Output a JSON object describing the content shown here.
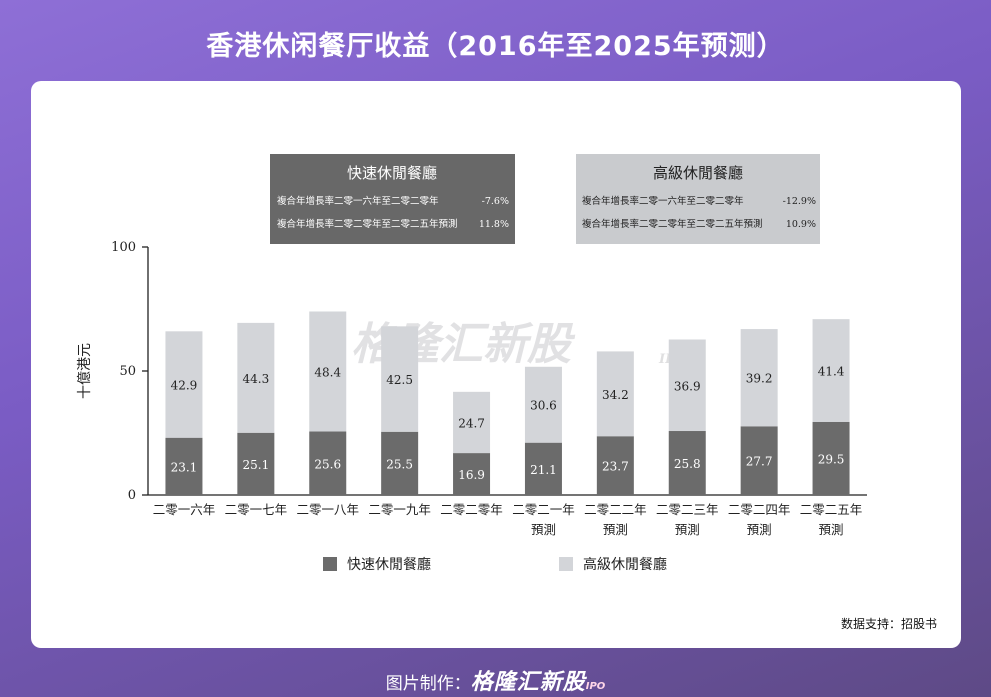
{
  "page": {
    "title": "香港休闲餐厅收益（2016年至2025年预测）",
    "source": "数据支持：招股书",
    "footer_label": "图片制作：",
    "footer_brand": "格隆汇新股",
    "footer_brand_suffix": "IPO",
    "watermark": "格隆汇新股",
    "watermark_suffix": "IPO"
  },
  "colors": {
    "fast_casual": "#6b6b6b",
    "fine_casual": "#d3d5d9",
    "legend_box_left": "#686868",
    "legend_box_right": "#c9cbce"
  },
  "chart_data": {
    "type": "bar",
    "stacked": true,
    "ylabel": "十億港元",
    "ylim": [
      0,
      100
    ],
    "yticks": [
      0,
      50,
      100
    ],
    "categories": [
      [
        "二零一六年"
      ],
      [
        "二零一七年"
      ],
      [
        "二零一八年"
      ],
      [
        "二零一九年"
      ],
      [
        "二零二零年"
      ],
      [
        "二零二一年",
        "預測"
      ],
      [
        "二零二二年",
        "預測"
      ],
      [
        "二零二三年",
        "預測"
      ],
      [
        "二零二四年",
        "預測"
      ],
      [
        "二零二五年",
        "預測"
      ]
    ],
    "series": [
      {
        "name": "快速休閒餐廳",
        "values": [
          23.1,
          25.1,
          25.6,
          25.5,
          16.9,
          21.1,
          23.7,
          25.8,
          27.7,
          29.5
        ]
      },
      {
        "name": "高級休閒餐廳",
        "values": [
          42.9,
          44.3,
          48.4,
          42.5,
          24.7,
          30.6,
          34.2,
          36.9,
          39.2,
          41.4
        ]
      }
    ],
    "cagr_boxes": [
      {
        "title": "快速休閒餐廳",
        "rows": [
          {
            "label": "複合年增長率二零一六年至二零二零年",
            "value": "-7.6%"
          },
          {
            "label": "複合年增長率二零二零年至二零二五年預測",
            "value": "11.8%"
          }
        ]
      },
      {
        "title": "高級休閒餐廳",
        "rows": [
          {
            "label": "複合年增長率二零一六年至二零二零年",
            "value": "-12.9%"
          },
          {
            "label": "複合年增長率二零二零年至二零二五年預測",
            "value": "10.9%"
          }
        ]
      }
    ]
  }
}
